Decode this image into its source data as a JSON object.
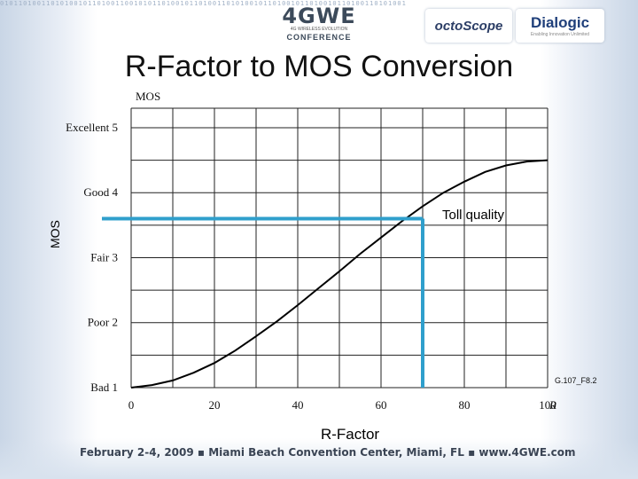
{
  "header": {
    "digit_strip": "0101101001101010010110100110010101101001011010011010100101101001011010010110100110101001",
    "conference_logo": {
      "big": "4GWE",
      "tagline": "4G WIRELESS EVOLUTION",
      "conference": "CONFERENCE"
    },
    "sponsor_logos": [
      {
        "name": "octoScope"
      },
      {
        "name": "Dialogic",
        "tagline": "Enabling Innovation Unlimited"
      }
    ]
  },
  "slide": {
    "title": "R-Factor to MOS Conversion",
    "side_label": "MOS",
    "bottom_label": "R-Factor",
    "footer": "February 2-4, 2009  ▪  Miami Beach Convention Center, Miami, FL  ▪  www.4GWE.com"
  },
  "chart_data": {
    "type": "line",
    "title": "",
    "xlabel": "R",
    "ylabel": "MOS",
    "x_ticks": [
      "0",
      "20",
      "40",
      "60",
      "80",
      "100"
    ],
    "y_ticks": [
      "Bad 1",
      "Poor 2",
      "Fair 3",
      "Good 4",
      "Excellent 5"
    ],
    "xlim": [
      0,
      100
    ],
    "ylim": [
      1,
      5
    ],
    "grid": true,
    "source_note": "G.107_F8.2",
    "series": [
      {
        "x": [
          0,
          5,
          10,
          15,
          20,
          25,
          30,
          35,
          40,
          45,
          50,
          55,
          60,
          65,
          70,
          75,
          80,
          85,
          90,
          95,
          100
        ],
        "y": [
          1.0,
          1.04,
          1.11,
          1.23,
          1.38,
          1.57,
          1.79,
          2.02,
          2.27,
          2.53,
          2.79,
          3.06,
          3.31,
          3.56,
          3.79,
          4.0,
          4.17,
          4.32,
          4.42,
          4.48,
          4.5
        ]
      }
    ],
    "annotation": {
      "label": "Toll quality",
      "x": 70,
      "y": 3.6,
      "color": "#2f9fcc"
    }
  }
}
